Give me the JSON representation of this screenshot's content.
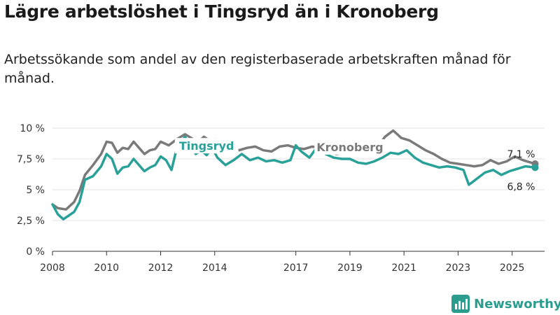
{
  "chart_data": {
    "type": "line",
    "title": "Lägre arbetslöshet i Tingsryd än i Kronoberg",
    "subtitle": "Arbetssökande som andel av den registerbaserade arbetskraften månad för månad.",
    "xlabel": "",
    "ylabel": "",
    "ylim": [
      0,
      10
    ],
    "y_ticks": [
      0,
      2.5,
      5,
      7.5,
      10
    ],
    "y_tick_labels": [
      "0 %",
      "2,5 %",
      "5 %",
      "7,5 %",
      "10 %"
    ],
    "x_range": [
      2008,
      2026.2
    ],
    "x_ticks": [
      2008,
      2010,
      2012,
      2014,
      2017,
      2019,
      2021,
      2023,
      2025
    ],
    "x_tick_labels": [
      "2008",
      "2010",
      "2012",
      "2014",
      "2017",
      "2019",
      "2021",
      "2023",
      "2025"
    ],
    "grid": true,
    "series": [
      {
        "name": "Kronoberg",
        "label": "Kronoberg",
        "color": "#7a7a7a",
        "end_label": "7,1 %",
        "x": [
          2008.0,
          2008.2,
          2008.5,
          2008.8,
          2009.0,
          2009.2,
          2009.5,
          2009.8,
          2010.0,
          2010.2,
          2010.4,
          2010.6,
          2010.8,
          2011.0,
          2011.2,
          2011.4,
          2011.6,
          2011.8,
          2012.0,
          2012.3,
          2012.6,
          2012.9,
          2013.2,
          2013.4,
          2013.6,
          2013.8,
          2014.0,
          2014.3,
          2014.6,
          2014.9,
          2015.2,
          2015.5,
          2015.8,
          2016.1,
          2016.4,
          2016.7,
          2017.0,
          2017.3,
          2017.6,
          2017.9,
          2018.2,
          2018.5,
          2018.8,
          2019.1,
          2019.4,
          2019.7,
          2020.0,
          2020.3,
          2020.6,
          2020.9,
          2021.2,
          2021.5,
          2021.8,
          2022.1,
          2022.4,
          2022.7,
          2023.0,
          2023.3,
          2023.6,
          2023.9,
          2024.2,
          2024.5,
          2024.8,
          2025.1,
          2025.4,
          2025.7,
          2025.85
        ],
        "values": [
          3.8,
          3.5,
          3.4,
          4.0,
          4.9,
          6.2,
          7.0,
          7.9,
          8.9,
          8.8,
          8.0,
          8.4,
          8.3,
          8.9,
          8.4,
          7.9,
          8.2,
          8.3,
          8.9,
          8.6,
          9.1,
          9.5,
          9.1,
          8.9,
          9.3,
          9.0,
          9.1,
          8.9,
          8.5,
          8.2,
          8.4,
          8.5,
          8.2,
          8.1,
          8.5,
          8.6,
          8.4,
          8.3,
          8.5,
          8.4,
          8.1,
          7.9,
          8.0,
          8.3,
          8.0,
          8.3,
          8.4,
          9.3,
          9.8,
          9.2,
          9.0,
          8.6,
          8.2,
          7.9,
          7.5,
          7.2,
          7.1,
          7.0,
          6.9,
          7.0,
          7.4,
          7.1,
          7.3,
          7.7,
          7.4,
          7.2,
          7.1
        ]
      },
      {
        "name": "Tingsryd",
        "label": "Tingsryd",
        "color": "#2aa198",
        "end_label": "6,8 %",
        "x": [
          2008.0,
          2008.2,
          2008.4,
          2008.6,
          2008.8,
          2009.0,
          2009.2,
          2009.5,
          2009.8,
          2010.0,
          2010.2,
          2010.4,
          2010.6,
          2010.8,
          2011.0,
          2011.2,
          2011.4,
          2011.6,
          2011.8,
          2012.0,
          2012.2,
          2012.4,
          2012.6,
          2012.9,
          2013.1,
          2013.3,
          2013.5,
          2013.7,
          2013.9,
          2014.1,
          2014.4,
          2014.7,
          2015.0,
          2015.3,
          2015.6,
          2015.9,
          2016.2,
          2016.5,
          2016.8,
          2017.0,
          2017.2,
          2017.5,
          2017.8,
          2018.1,
          2018.4,
          2018.7,
          2019.0,
          2019.3,
          2019.6,
          2019.9,
          2020.2,
          2020.5,
          2020.8,
          2021.1,
          2021.4,
          2021.7,
          2022.0,
          2022.3,
          2022.6,
          2022.9,
          2023.2,
          2023.4,
          2023.7,
          2024.0,
          2024.3,
          2024.6,
          2024.9,
          2025.2,
          2025.5,
          2025.85
        ],
        "values": [
          3.8,
          3.0,
          2.6,
          2.9,
          3.2,
          4.0,
          5.8,
          6.1,
          6.9,
          7.9,
          7.5,
          6.3,
          6.8,
          6.9,
          7.5,
          7.0,
          6.5,
          6.8,
          7.0,
          7.7,
          7.4,
          6.6,
          8.4,
          9.3,
          8.6,
          7.9,
          8.2,
          7.8,
          8.4,
          7.6,
          7.0,
          7.4,
          7.9,
          7.4,
          7.6,
          7.3,
          7.4,
          7.2,
          7.4,
          8.6,
          8.1,
          7.6,
          8.5,
          7.9,
          7.6,
          7.5,
          7.5,
          7.2,
          7.1,
          7.3,
          7.6,
          8.0,
          7.9,
          8.2,
          7.6,
          7.2,
          7.0,
          6.8,
          6.9,
          6.8,
          6.6,
          5.4,
          5.9,
          6.4,
          6.6,
          6.2,
          6.5,
          6.7,
          6.9,
          6.8
        ]
      }
    ]
  },
  "brand": {
    "name": "Newsworthy"
  }
}
